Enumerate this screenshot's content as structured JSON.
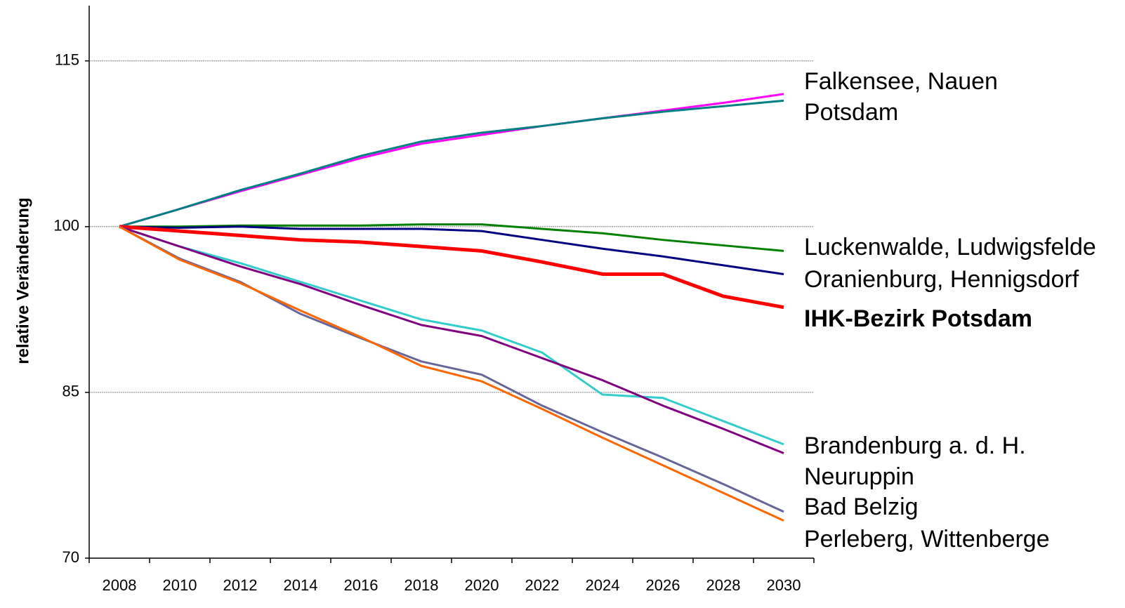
{
  "chart_data": {
    "type": "line",
    "y_label": "relative Veränderung",
    "categories": [
      "2008",
      "2010",
      "2012",
      "2014",
      "2016",
      "2018",
      "2020",
      "2022",
      "2024",
      "2026",
      "2028",
      "2030"
    ],
    "ylim": [
      70,
      120
    ],
    "yticks": [
      70,
      85,
      100,
      115
    ],
    "grid": true,
    "series": [
      {
        "name": "Falkensee, Nauen",
        "color": "#ff00ff",
        "values": [
          100,
          101.6,
          103.2,
          104.7,
          106.2,
          107.5,
          108.3,
          109.1,
          109.8,
          110.5,
          111.2,
          112.0
        ]
      },
      {
        "name": "Potsdam",
        "color": "#008080",
        "values": [
          100,
          101.6,
          103.3,
          104.8,
          106.4,
          107.7,
          108.5,
          109.1,
          109.8,
          110.4,
          110.9,
          111.4
        ]
      },
      {
        "name": "Luckenwalde, Ludwigsfelde",
        "color": "#008000",
        "values": [
          100,
          100,
          100.1,
          100.1,
          100.1,
          100.2,
          100.2,
          99.8,
          99.4,
          98.8,
          98.3,
          97.8
        ]
      },
      {
        "name": "Oranienburg, Hennigsdorf",
        "color": "#000080",
        "values": [
          100,
          99.9,
          100,
          99.8,
          99.8,
          99.8,
          99.6,
          98.8,
          98.0,
          97.3,
          96.5,
          95.7
        ]
      },
      {
        "name": "IHK-Bezirk Potsdam",
        "color": "#ff0000",
        "values": [
          100,
          99.6,
          99.2,
          98.8,
          98.6,
          98.2,
          97.8,
          96.8,
          95.7,
          95.7,
          93.7,
          92.7
        ]
      },
      {
        "name": "Brandenburg a. d. H.",
        "color": "#33cccc",
        "values": [
          100,
          98.2,
          96.7,
          95.0,
          93.3,
          91.6,
          90.6,
          88.6,
          84.8,
          84.5,
          82.4,
          80.3
        ]
      },
      {
        "name": "Neuruppin",
        "color": "#800080",
        "values": [
          100,
          98.2,
          96.4,
          94.8,
          92.9,
          91.1,
          90.1,
          88.1,
          86.1,
          83.8,
          81.7,
          79.5
        ]
      },
      {
        "name": "Bad Belzig",
        "color": "#666699",
        "values": [
          100,
          97.1,
          95.0,
          92.1,
          89.9,
          87.8,
          86.6,
          83.8,
          81.4,
          79.1,
          76.7,
          74.2
        ]
      },
      {
        "name": "Perleberg, Wittenberge",
        "color": "#ff6600",
        "values": [
          100,
          97.0,
          94.9,
          92.4,
          90.0,
          87.4,
          86.0,
          83.5,
          80.9,
          78.4,
          75.9,
          73.4
        ]
      }
    ]
  }
}
